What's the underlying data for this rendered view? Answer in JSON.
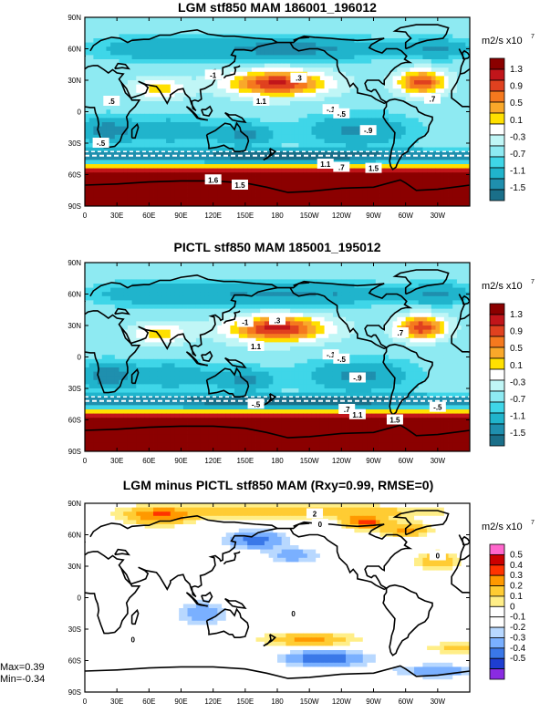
{
  "panels": [
    {
      "title": "LGM stf850 MAM 186001_196012",
      "units": "m2/s x10",
      "units_exp": "7",
      "colorbar_labels": [
        "1.3",
        "0.9",
        "0.5",
        "0.1",
        "-0.3",
        "-0.7",
        "-1.1",
        "-1.5"
      ],
      "colorbar_colors": [
        "#8b0000",
        "#c1151a",
        "#e0411f",
        "#f5791e",
        "#f9a82a",
        "#ffe000",
        "#ffffff",
        "#c0f6f6",
        "#8eeaf2",
        "#3fd6e8",
        "#20b4cc",
        "#1f8fae",
        "#1a6f89"
      ],
      "contour_labels": [
        "-1",
        ".3",
        "1.1",
        "-.1",
        "-.5",
        ".7",
        "-.9",
        ".5",
        "-.5",
        "1.1",
        ".7",
        "1.5",
        "1.6",
        "1.5"
      ]
    },
    {
      "title": "PICTL stf850 MAM 185001_195012",
      "units": "m2/s x10",
      "units_exp": "7",
      "colorbar_labels": [
        "1.3",
        "0.9",
        "0.5",
        "0.1",
        "-0.3",
        "-0.7",
        "-1.1",
        "-1.5"
      ],
      "colorbar_colors": [
        "#8b0000",
        "#c1151a",
        "#e0411f",
        "#f5791e",
        "#f9a82a",
        "#ffe000",
        "#ffffff",
        "#c0f6f6",
        "#8eeaf2",
        "#3fd6e8",
        "#20b4cc",
        "#1f8fae",
        "#1a6f89"
      ],
      "contour_labels": [
        "-1",
        ".3",
        "1.1",
        "-.1",
        "-.5",
        ".7",
        "-.9",
        "-.5",
        ".7",
        "1.1",
        "1.5",
        "-.5"
      ]
    },
    {
      "title": "LGM minus PICTL stf850 MAM (Rxy=0.99, RMSE=0)",
      "units": "m2/s x10",
      "units_exp": "7",
      "colorbar_labels": [
        "0.5",
        "0.4",
        "0.3",
        "0.2",
        "0.1",
        "0",
        "-0.1",
        "-0.2",
        "-0.3",
        "-0.4",
        "-0.5"
      ],
      "colorbar_colors": [
        "#ff66cc",
        "#cc0000",
        "#ff3300",
        "#ff9900",
        "#ffcc33",
        "#ffee88",
        "#ffffff",
        "#ffffff",
        "#b8d8ff",
        "#7ab0ff",
        "#3a78e8",
        "#1e3ed0",
        "#8a2be2"
      ],
      "contour_labels": [
        "2",
        "0",
        "0",
        "0",
        "0"
      ],
      "max_label": "Max=0.39",
      "min_label": "Min=-0.34"
    }
  ],
  "axes": {
    "lat_ticks": [
      "90N",
      "60N",
      "30N",
      "0",
      "30S",
      "60S",
      "90S"
    ],
    "lon_ticks": [
      "0",
      "30E",
      "60E",
      "90E",
      "120E",
      "150E",
      "180",
      "150W",
      "120W",
      "90W",
      "60W",
      "30W"
    ]
  },
  "chart_data": [
    {
      "type": "heatmap",
      "title": "LGM stf850 MAM 186001_196012",
      "units": "m2/s x10^7",
      "xlim": [
        0,
        360
      ],
      "ylim": [
        -90,
        90
      ],
      "color_levels": [
        1.3,
        0.9,
        0.5,
        0.1,
        -0.3,
        -0.7,
        -1.1,
        -1.5
      ],
      "features": [
        {
          "lon": 175,
          "lat": 25,
          "value": 1.1
        },
        {
          "lon": 305,
          "lat": 28,
          "value": 0.7
        },
        {
          "lon": 220,
          "lat": 5,
          "value": -0.1
        },
        {
          "lon": 260,
          "lat": -20,
          "value": -0.9
        },
        {
          "lon": 190,
          "lat": -75,
          "value": 1.5
        }
      ]
    },
    {
      "type": "heatmap",
      "title": "PICTL stf850 MAM 185001_195012",
      "units": "m2/s x10^7",
      "xlim": [
        0,
        360
      ],
      "ylim": [
        -90,
        90
      ],
      "color_levels": [
        1.3,
        0.9,
        0.5,
        0.1,
        -0.3,
        -0.7,
        -1.1,
        -1.5
      ],
      "features": [
        {
          "lon": 185,
          "lat": 28,
          "value": 1.1
        },
        {
          "lon": 320,
          "lat": 30,
          "value": 1.1
        },
        {
          "lon": 260,
          "lat": -20,
          "value": -0.9
        },
        {
          "lon": 190,
          "lat": -75,
          "value": 1.5
        }
      ]
    },
    {
      "type": "heatmap",
      "title": "LGM minus PICTL stf850 MAM (Rxy=0.99, RMSE=0)",
      "units": "m2/s x10^7",
      "xlim": [
        0,
        360
      ],
      "ylim": [
        -90,
        90
      ],
      "color_levels": [
        0.5,
        0.4,
        0.3,
        0.2,
        0.1,
        0,
        -0.1,
        -0.2,
        -0.3,
        -0.4,
        -0.5
      ],
      "max": 0.39,
      "min": -0.34
    }
  ]
}
